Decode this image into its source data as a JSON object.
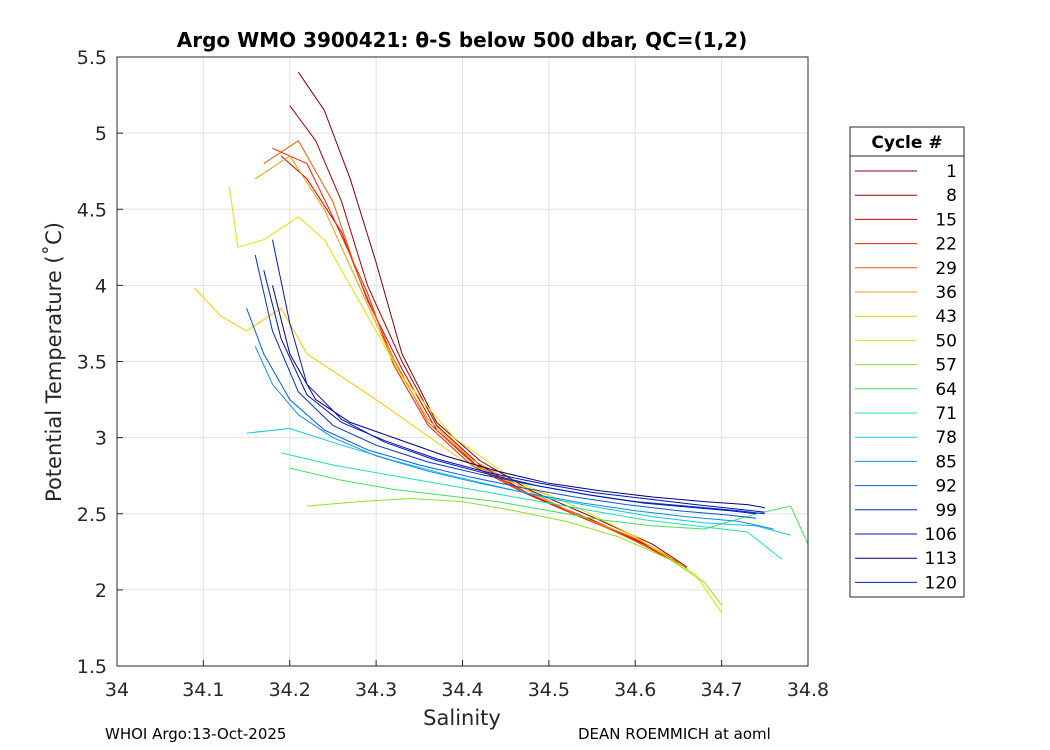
{
  "chart_data": {
    "type": "line",
    "title": "Argo WMO 3900421: θ-S below 500 dbar,  QC=(1,2)",
    "xlabel": "Salinity",
    "ylabel": "Potential Temperature (˚C)",
    "xlim": [
      34,
      34.8
    ],
    "ylim": [
      1.5,
      5.5
    ],
    "xticks": [
      "34",
      "34.1",
      "34.2",
      "34.3",
      "34.4",
      "34.5",
      "34.6",
      "34.7",
      "34.8"
    ],
    "yticks": [
      "1.5",
      "2",
      "2.5",
      "3",
      "3.5",
      "4",
      "4.5",
      "5",
      "5.5"
    ],
    "grid": true,
    "legend": {
      "title": "Cycle #",
      "placement": "outside-right",
      "entries": [
        {
          "label": "1",
          "color": "#800000"
        },
        {
          "label": "8",
          "color": "#a00000"
        },
        {
          "label": "15",
          "color": "#cc0000"
        },
        {
          "label": "22",
          "color": "#e62000"
        },
        {
          "label": "29",
          "color": "#f05a00"
        },
        {
          "label": "36",
          "color": "#f59a00"
        },
        {
          "label": "43",
          "color": "#f8c800"
        },
        {
          "label": "50",
          "color": "#e0e000"
        },
        {
          "label": "57",
          "color": "#90e020"
        },
        {
          "label": "64",
          "color": "#40e060"
        },
        {
          "label": "71",
          "color": "#20e0b0"
        },
        {
          "label": "78",
          "color": "#10c8e0"
        },
        {
          "label": "85",
          "color": "#0a90e8"
        },
        {
          "label": "92",
          "color": "#0858d8"
        },
        {
          "label": "99",
          "color": "#0030c8"
        },
        {
          "label": "106",
          "color": "#0010b0"
        },
        {
          "label": "113",
          "color": "#000080"
        },
        {
          "label": "120",
          "color": "#0018b8"
        }
      ]
    },
    "series": [
      {
        "name": "1",
        "color": "#800000",
        "x": [
          34.21,
          34.24,
          34.27,
          34.3,
          34.33,
          34.37,
          34.42,
          34.48,
          34.55,
          34.62,
          34.66
        ],
        "y": [
          5.4,
          5.15,
          4.7,
          4.15,
          3.55,
          3.1,
          2.85,
          2.65,
          2.48,
          2.3,
          2.15
        ]
      },
      {
        "name": "8",
        "color": "#a00000",
        "x": [
          34.2,
          34.23,
          34.26,
          34.29,
          34.33,
          34.37,
          34.42,
          34.48,
          34.55,
          34.62,
          34.66
        ],
        "y": [
          5.18,
          4.95,
          4.55,
          4.0,
          3.5,
          3.08,
          2.82,
          2.62,
          2.46,
          2.28,
          2.14
        ]
      },
      {
        "name": "15",
        "color": "#cc0000",
        "x": [
          34.19,
          34.22,
          34.26,
          34.29,
          34.33,
          34.37,
          34.42,
          34.48,
          34.55,
          34.61,
          34.65
        ],
        "y": [
          4.85,
          4.7,
          4.35,
          3.9,
          3.45,
          3.05,
          2.8,
          2.62,
          2.45,
          2.3,
          2.17
        ]
      },
      {
        "name": "22",
        "color": "#e62000",
        "x": [
          34.18,
          34.22,
          34.25,
          34.29,
          34.32,
          34.36,
          34.41,
          34.47,
          34.54,
          34.61,
          34.65
        ],
        "y": [
          4.9,
          4.8,
          4.45,
          3.95,
          3.48,
          3.08,
          2.82,
          2.64,
          2.47,
          2.31,
          2.18
        ]
      },
      {
        "name": "29",
        "color": "#f05a00",
        "x": [
          34.17,
          34.21,
          34.25,
          34.28,
          34.32,
          34.36,
          34.41,
          34.47,
          34.54,
          34.6,
          34.64
        ],
        "y": [
          4.8,
          4.95,
          4.55,
          4.05,
          3.52,
          3.1,
          2.84,
          2.65,
          2.48,
          2.32,
          2.2
        ]
      },
      {
        "name": "36",
        "color": "#f59a00",
        "x": [
          34.16,
          34.2,
          34.24,
          34.28,
          34.32,
          34.36,
          34.41,
          34.47,
          34.53,
          34.6,
          34.64
        ],
        "y": [
          4.7,
          4.85,
          4.5,
          4.0,
          3.5,
          3.12,
          2.86,
          2.67,
          2.5,
          2.34,
          2.22
        ]
      },
      {
        "name": "43",
        "color": "#f8c800",
        "x": [
          34.09,
          34.12,
          34.15,
          34.19,
          34.22,
          34.26,
          34.3,
          34.35,
          34.4,
          34.45,
          34.5
        ],
        "y": [
          3.98,
          3.8,
          3.7,
          3.85,
          3.55,
          3.4,
          3.25,
          3.05,
          2.85,
          2.72,
          2.62
        ]
      },
      {
        "name": "50",
        "color": "#e0e000",
        "x": [
          34.13,
          34.14,
          34.17,
          34.21,
          34.24,
          34.28,
          34.33,
          34.39,
          34.46,
          34.53,
          34.6,
          34.67,
          34.7
        ],
        "y": [
          4.65,
          4.25,
          4.3,
          4.45,
          4.3,
          3.9,
          3.4,
          3.0,
          2.72,
          2.55,
          2.35,
          2.1,
          1.85
        ]
      },
      {
        "name": "57",
        "color": "#90e020",
        "x": [
          34.22,
          34.28,
          34.34,
          34.4,
          34.46,
          34.52,
          34.58,
          34.64,
          34.68,
          34.7
        ],
        "y": [
          2.55,
          2.58,
          2.6,
          2.58,
          2.52,
          2.45,
          2.35,
          2.2,
          2.05,
          1.9
        ]
      },
      {
        "name": "64",
        "color": "#40e060",
        "x": [
          34.2,
          34.26,
          34.32,
          34.38,
          34.44,
          34.5,
          34.56,
          34.62,
          34.68,
          34.74,
          34.78,
          34.8
        ],
        "y": [
          2.8,
          2.72,
          2.66,
          2.62,
          2.58,
          2.52,
          2.46,
          2.42,
          2.4,
          2.5,
          2.55,
          2.3
        ]
      },
      {
        "name": "71",
        "color": "#20e0b0",
        "x": [
          34.19,
          34.25,
          34.31,
          34.37,
          34.43,
          34.49,
          34.55,
          34.61,
          34.67,
          34.73,
          34.77
        ],
        "y": [
          2.9,
          2.82,
          2.76,
          2.7,
          2.64,
          2.58,
          2.52,
          2.46,
          2.42,
          2.38,
          2.2
        ]
      },
      {
        "name": "78",
        "color": "#10c8e0",
        "x": [
          34.15,
          34.2,
          34.26,
          34.32,
          34.38,
          34.44,
          34.5,
          34.56,
          34.62,
          34.68,
          34.74,
          34.78
        ],
        "y": [
          3.03,
          3.06,
          2.95,
          2.85,
          2.76,
          2.68,
          2.6,
          2.54,
          2.48,
          2.44,
          2.42,
          2.36
        ]
      },
      {
        "name": "85",
        "color": "#0a90e8",
        "x": [
          34.16,
          34.18,
          34.21,
          34.25,
          34.3,
          34.36,
          34.42,
          34.48,
          34.54,
          34.6,
          34.66,
          34.72,
          34.76
        ],
        "y": [
          3.6,
          3.35,
          3.15,
          3.0,
          2.88,
          2.78,
          2.7,
          2.63,
          2.57,
          2.52,
          2.48,
          2.45,
          2.4
        ]
      },
      {
        "name": "92",
        "color": "#0858d8",
        "x": [
          34.15,
          34.17,
          34.2,
          34.24,
          34.29,
          34.35,
          34.41,
          34.47,
          34.53,
          34.59,
          34.65,
          34.71,
          34.74
        ],
        "y": [
          3.85,
          3.55,
          3.25,
          3.05,
          2.92,
          2.82,
          2.74,
          2.67,
          2.61,
          2.56,
          2.52,
          2.49,
          2.47
        ]
      },
      {
        "name": "99",
        "color": "#0030c8",
        "x": [
          34.16,
          34.18,
          34.21,
          34.25,
          34.3,
          34.36,
          34.42,
          34.48,
          34.54,
          34.6,
          34.66,
          34.72,
          34.75
        ],
        "y": [
          4.2,
          3.7,
          3.3,
          3.08,
          2.95,
          2.84,
          2.76,
          2.69,
          2.63,
          2.58,
          2.55,
          2.52,
          2.5
        ]
      },
      {
        "name": "106",
        "color": "#0010b0",
        "x": [
          34.17,
          34.19,
          34.22,
          34.26,
          34.31,
          34.37,
          34.43,
          34.49,
          34.55,
          34.61,
          34.67,
          34.72,
          34.75
        ],
        "y": [
          4.1,
          3.65,
          3.28,
          3.1,
          2.98,
          2.86,
          2.77,
          2.7,
          2.64,
          2.6,
          2.56,
          2.53,
          2.51
        ]
      },
      {
        "name": "113",
        "color": "#000080",
        "x": [
          34.18,
          34.2,
          34.23,
          34.27,
          34.32,
          34.38,
          34.44,
          34.5,
          34.56,
          34.62,
          34.68,
          34.73,
          34.75
        ],
        "y": [
          4.0,
          3.55,
          3.25,
          3.1,
          3.0,
          2.88,
          2.78,
          2.7,
          2.65,
          2.61,
          2.58,
          2.56,
          2.54
        ]
      },
      {
        "name": "120",
        "color": "#0018b8",
        "x": [
          34.18,
          34.2,
          34.22,
          34.26,
          34.31,
          34.37,
          34.43,
          34.49,
          34.55,
          34.61,
          34.67,
          34.71,
          34.74
        ],
        "y": [
          4.3,
          3.75,
          3.35,
          3.12,
          2.97,
          2.85,
          2.76,
          2.68,
          2.62,
          2.57,
          2.54,
          2.52,
          2.5
        ]
      }
    ]
  },
  "footer": {
    "left": "WHOI Argo:13-Oct-2025",
    "right": "DEAN ROEMMICH at aoml"
  }
}
